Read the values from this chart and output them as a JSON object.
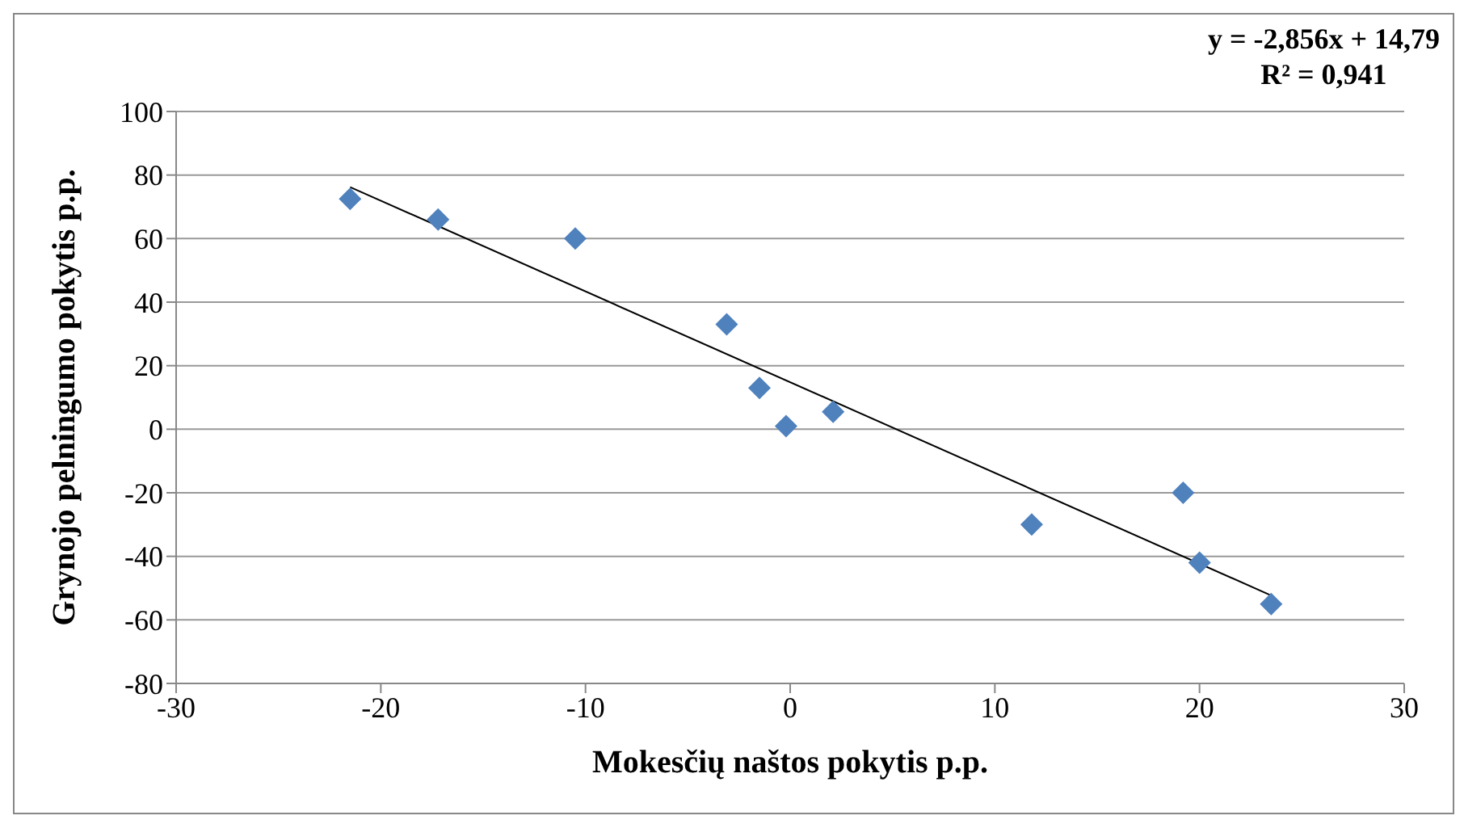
{
  "chart_data": {
    "type": "scatter",
    "xlabel": "Mokesčių naštos pokytis p.p.",
    "ylabel": "Grynojo pelningumo pokytis p.p.",
    "xlim": [
      -30,
      30
    ],
    "xticks": [
      -30,
      -20,
      -10,
      0,
      10,
      20,
      30
    ],
    "ylim": [
      -80,
      100
    ],
    "yticks": [
      -80,
      -60,
      -40,
      -20,
      0,
      20,
      40,
      60,
      80,
      100
    ],
    "grid": "y",
    "marker": "diamond",
    "legend": false,
    "annotations": [
      "y = -2,856x + 14,79",
      "R² = 0,941"
    ],
    "series": [
      {
        "type": "scatter",
        "color": "#4f81bd",
        "x": [
          -21.5,
          -17.2,
          -10.5,
          -3.1,
          -1.5,
          -0.2,
          2.1,
          11.8,
          19.2,
          20.0,
          23.5
        ],
        "values": [
          72.5,
          66,
          60,
          33,
          13,
          1,
          5.5,
          -30,
          -20,
          -42,
          -55
        ]
      },
      {
        "type": "line",
        "color": "#000000",
        "line_style": "solid",
        "marker": "none",
        "x": [
          -21.5,
          23.5
        ],
        "values": [
          76.2,
          -52.3
        ]
      }
    ]
  }
}
